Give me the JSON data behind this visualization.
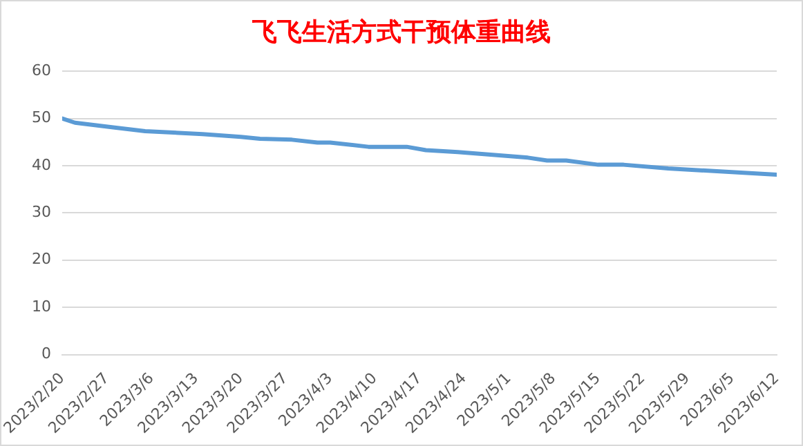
{
  "chart_data": {
    "type": "line",
    "title": "飞飞生活方式干预体重曲线",
    "x": [
      "2023-02-20",
      "2023-02-22",
      "2023-02-28",
      "2023-03-05",
      "2023-03-14",
      "2023-03-20",
      "2023-03-23",
      "2023-03-28",
      "2023-04-01",
      "2023-04-03",
      "2023-04-09",
      "2023-04-15",
      "2023-04-18",
      "2023-04-23",
      "2023-05-04",
      "2023-05-07",
      "2023-05-10",
      "2023-05-15",
      "2023-05-19",
      "2023-05-26",
      "2023-06-12"
    ],
    "series": [
      {
        "color": "#5b9bd5",
        "values": [
          50,
          49.1,
          48.1,
          47.3,
          46.7,
          46.1,
          45.7,
          45.5,
          44.9,
          44.9,
          44,
          44,
          43.3,
          42.9,
          41.7,
          41.1,
          41.1,
          40.2,
          40.2,
          39.4,
          38.1
        ]
      }
    ],
    "xlim": [
      "2023-02-20",
      "2023-06-12"
    ],
    "xticks": [
      {
        "value": "2023-02-20",
        "label": "2023/2/20"
      },
      {
        "value": "2023-02-27",
        "label": "2023/2/27"
      },
      {
        "value": "2023-03-06",
        "label": "2023/3/6"
      },
      {
        "value": "2023-03-13",
        "label": "2023/3/13"
      },
      {
        "value": "2023-03-20",
        "label": "2023/3/20"
      },
      {
        "value": "2023-03-27",
        "label": "2023/3/27"
      },
      {
        "value": "2023-04-03",
        "label": "2023/4/3"
      },
      {
        "value": "2023-04-10",
        "label": "2023/4/10"
      },
      {
        "value": "2023-04-17",
        "label": "2023/4/17"
      },
      {
        "value": "2023-04-24",
        "label": "2023/4/24"
      },
      {
        "value": "2023-05-01",
        "label": "2023/5/1"
      },
      {
        "value": "2023-05-08",
        "label": "2023/5/8"
      },
      {
        "value": "2023-05-15",
        "label": "2023/5/15"
      },
      {
        "value": "2023-05-22",
        "label": "2023/5/22"
      },
      {
        "value": "2023-05-29",
        "label": "2023/5/29"
      },
      {
        "value": "2023-06-05",
        "label": "2023/6/5"
      },
      {
        "value": "2023-06-12",
        "label": "2023/6/12"
      }
    ],
    "ylim": [
      0,
      60
    ],
    "yticks": [
      0,
      10,
      20,
      30,
      40,
      50,
      60
    ],
    "grid": "y",
    "legend": false,
    "marker": "none",
    "line_style": "solid"
  }
}
